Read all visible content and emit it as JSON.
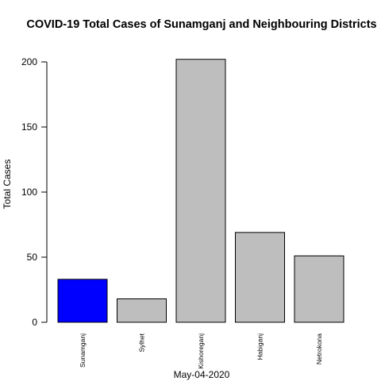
{
  "chart_data": {
    "type": "bar",
    "title": "COVID-19 Total Cases of Sunamganj and Neighbouring Districts",
    "xlabel": "May-04-2020",
    "ylabel": "Total Cases",
    "categories": [
      "Sunamganj",
      "Sylhet",
      "Kishoreganj",
      "Habiganj",
      "Netrokona"
    ],
    "values": [
      33,
      18,
      202,
      69,
      51
    ],
    "colors": [
      "#0000ff",
      "#bebebe",
      "#bebebe",
      "#bebebe",
      "#bebebe"
    ],
    "ylim": [
      0,
      200
    ],
    "yticks": [
      0,
      50,
      100,
      150,
      200
    ],
    "grid": false,
    "legend": "none"
  }
}
